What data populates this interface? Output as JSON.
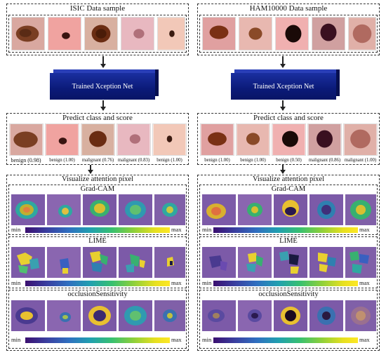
{
  "left": {
    "sample_title": "ISIC Data sample",
    "net_label": "Trained Xception Net",
    "predict_title": "Predict class and score",
    "predictions": [
      "benign (0.98)",
      "benign (1.00)",
      "malignant (0.76)",
      "malignant (0.83)",
      "benign (1.00)"
    ],
    "attention_title": "Visualize attention pixel",
    "gradcam_title": "Grad-CAM",
    "lime_title": "LIME",
    "occ_title": "occlusionSensitivity",
    "min": "min",
    "max": "max"
  },
  "right": {
    "sample_title": "HAM10000 Data sample",
    "net_label": "Trained Xception Net",
    "predict_title": "Predict class and score",
    "predictions": [
      "benign (1.00)",
      "benign (1.00)",
      "benign (0.50)",
      "malignant (0.86)",
      "malignant (1.00)"
    ],
    "attention_title": "Visualize attention pixel",
    "gradcam_title": "Grad-CAM",
    "lime_title": "LIME",
    "occ_title": "occlusionSensitivity",
    "min": "min",
    "max": "max"
  },
  "colors": {
    "network_block": "#0b1a78",
    "skin_background": "#e8b4b0",
    "heatmap_background": "#7c5aa8"
  }
}
